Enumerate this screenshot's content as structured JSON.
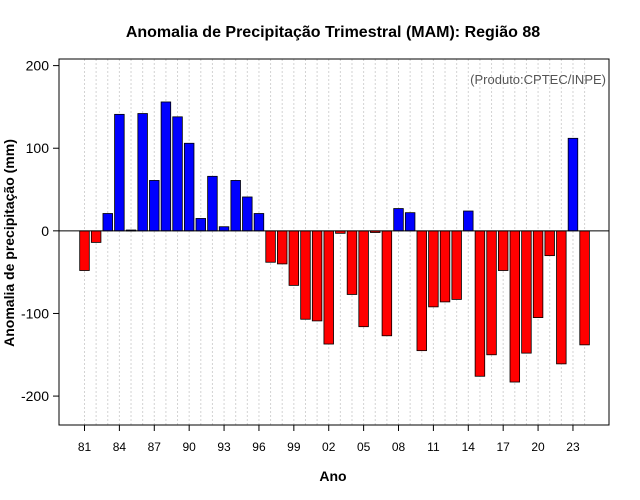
{
  "chart_data": {
    "type": "bar",
    "title": "Anomalia de Precipitação Trimestral (MAM): Região 88",
    "credit": "(Produto:CPTEC/INPE)",
    "xlabel": "Ano",
    "ylabel": "Anomalia de precipitação (mm)",
    "ylim": [
      -235,
      208
    ],
    "yticks": [
      -200,
      -100,
      0,
      100,
      200
    ],
    "xticks": [
      "81",
      "84",
      "87",
      "90",
      "93",
      "96",
      "99",
      "02",
      "05",
      "08",
      "11",
      "14",
      "17",
      "20",
      "23"
    ],
    "positive_color": "#0000ff",
    "negative_color": "#ff0000",
    "categories": [
      "1981",
      "1982",
      "1983",
      "1984",
      "1985",
      "1986",
      "1987",
      "1988",
      "1989",
      "1990",
      "1991",
      "1992",
      "1993",
      "1994",
      "1995",
      "1996",
      "1997",
      "1998",
      "1999",
      "2000",
      "2001",
      "2002",
      "2003",
      "2004",
      "2005",
      "2006",
      "2007",
      "2008",
      "2009",
      "2010",
      "2011",
      "2012",
      "2013",
      "2014",
      "2015",
      "2016",
      "2017",
      "2018",
      "2019",
      "2020",
      "2021",
      "2022",
      "2023",
      "2024"
    ],
    "values": [
      -48,
      -14,
      21,
      141,
      1,
      142,
      61,
      156,
      138,
      106,
      15,
      66,
      5,
      61,
      41,
      21,
      -38,
      -40,
      -66,
      -107,
      -109,
      -137,
      -3,
      -77,
      -116,
      -2,
      -127,
      27,
      22,
      -145,
      -92,
      -86,
      -83,
      24,
      -176,
      -150,
      -48,
      -183,
      -148,
      -105,
      -30,
      -161,
      112,
      -138
    ]
  }
}
